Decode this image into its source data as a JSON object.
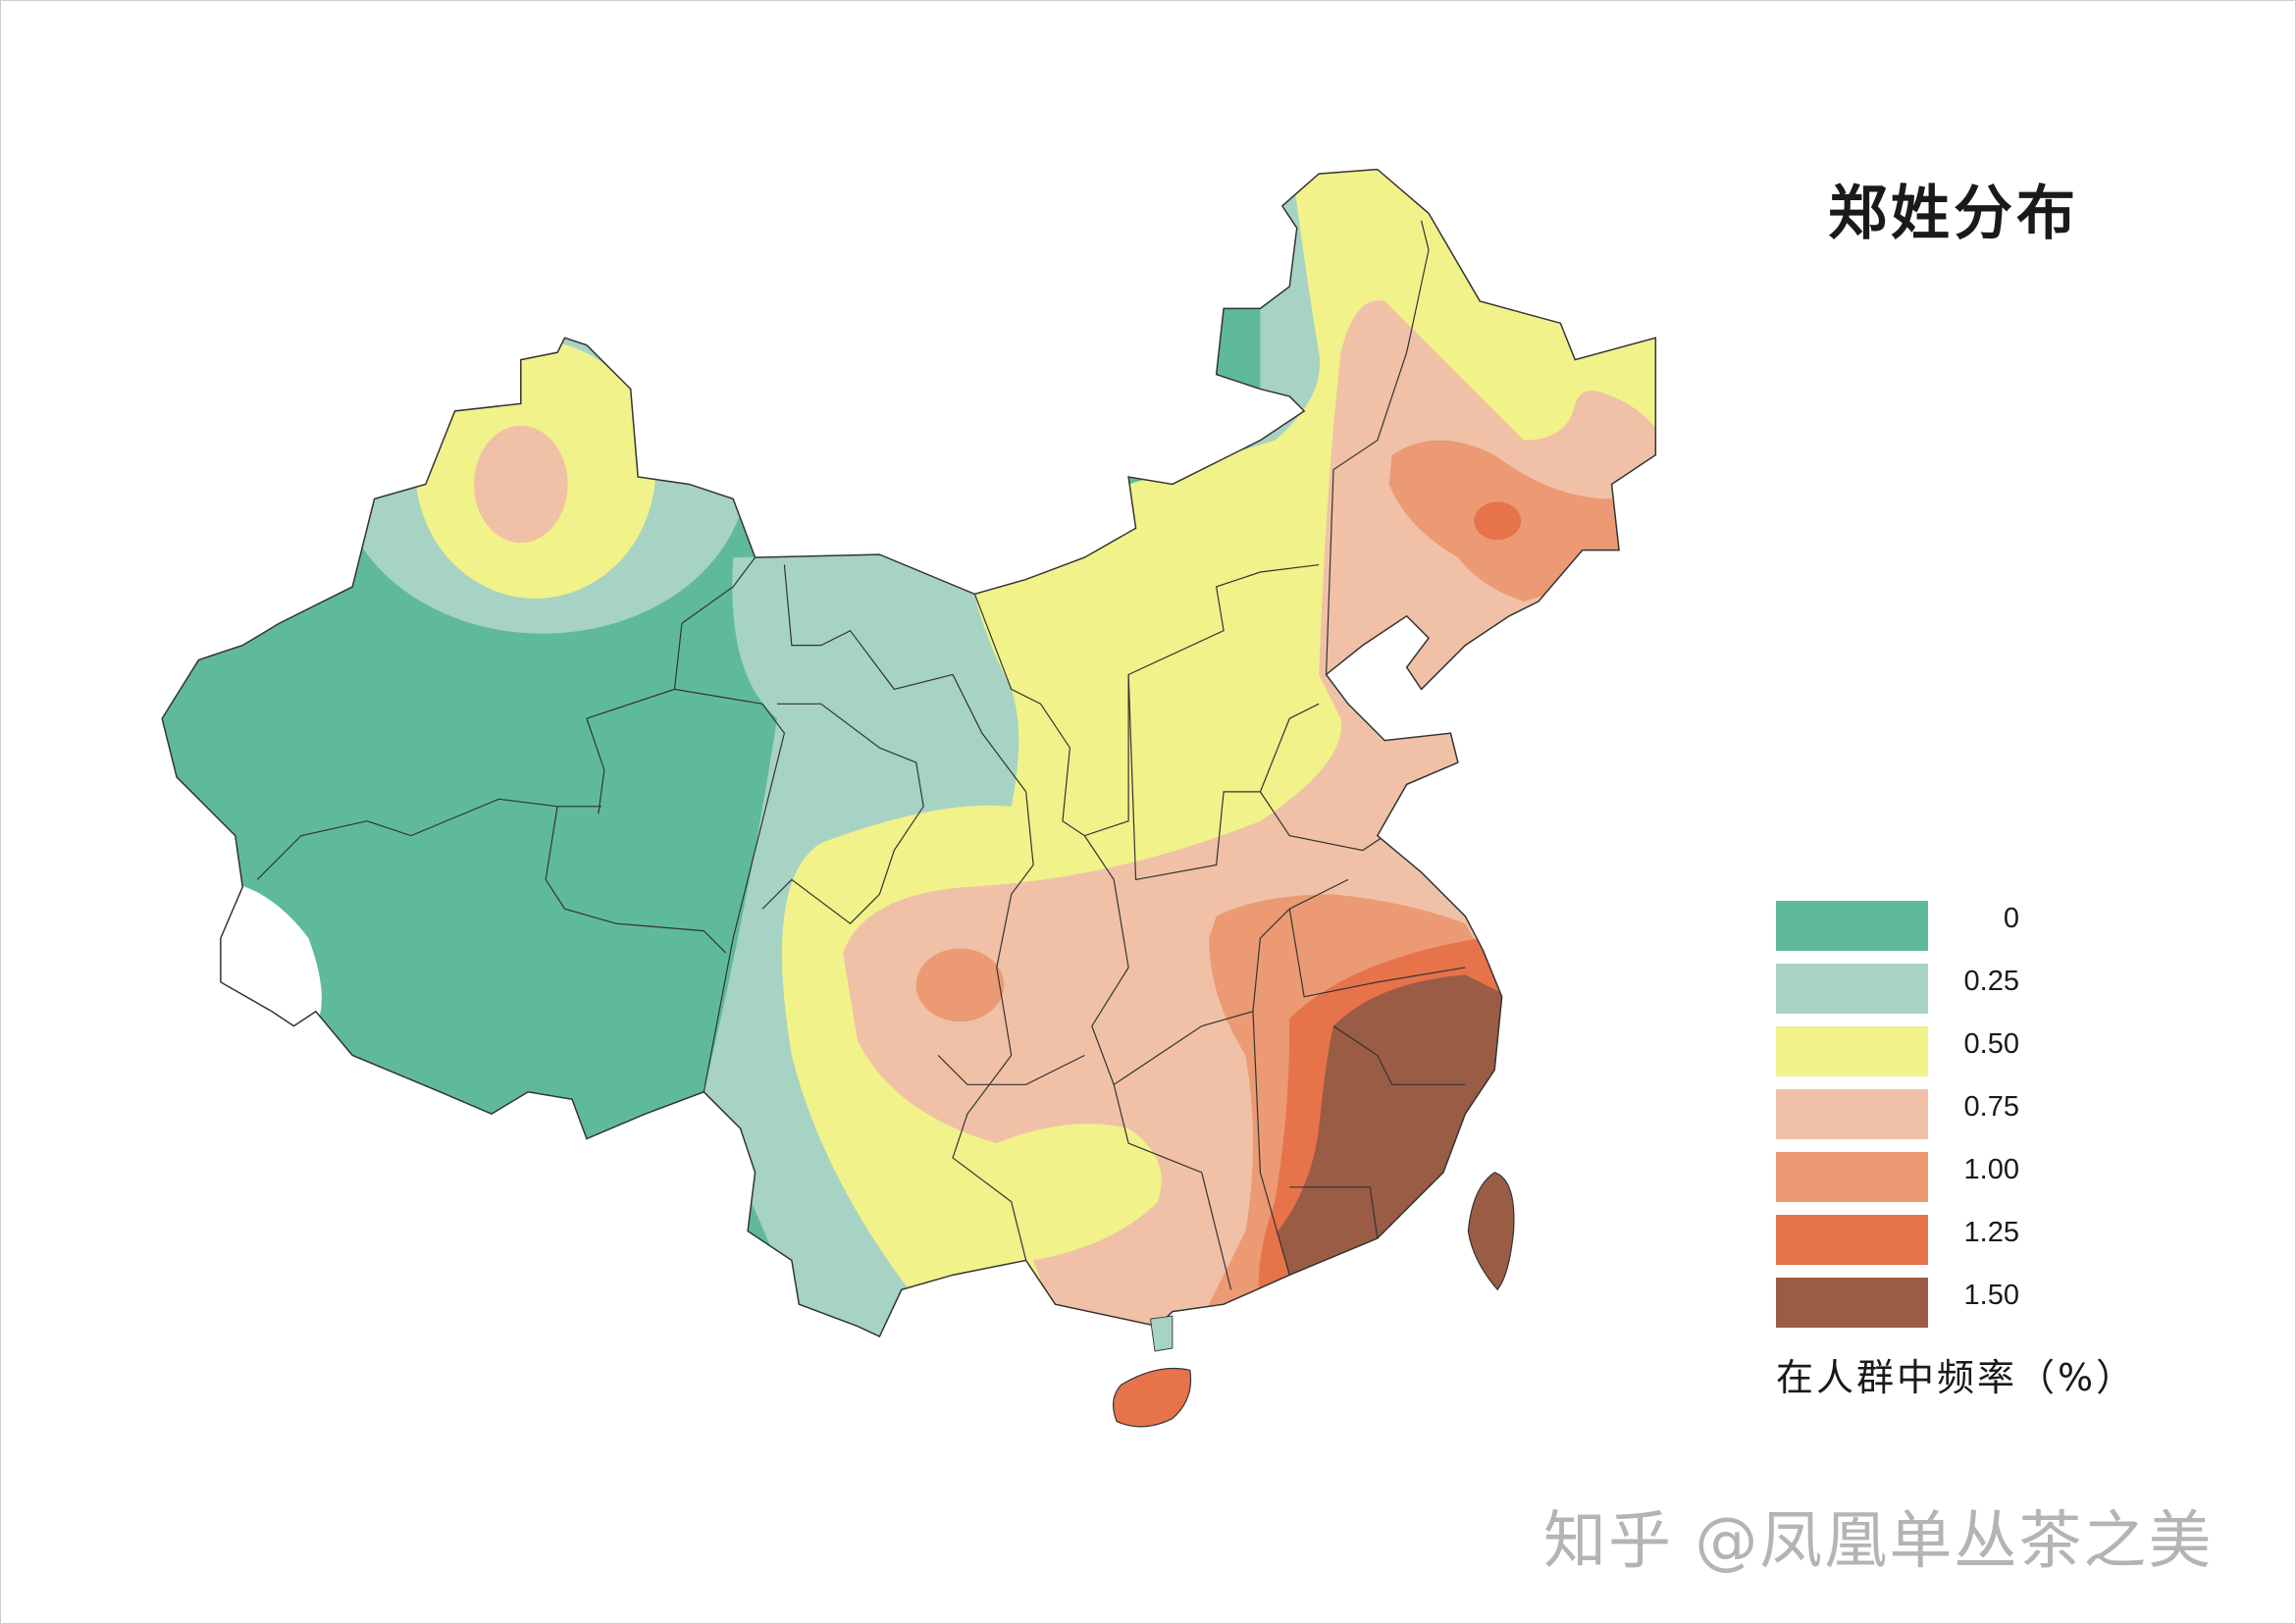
{
  "title": "郑姓分布",
  "legend": {
    "items": [
      {
        "label": "0",
        "color": "#5fba9a"
      },
      {
        "label": "0.25",
        "color": "#a6d3c3"
      },
      {
        "label": "0.50",
        "color": "#f1f28a"
      },
      {
        "label": "0.75",
        "color": "#f0c1a6"
      },
      {
        "label": "1.00",
        "color": "#eb9a74"
      },
      {
        "label": "1.25",
        "color": "#e7734b"
      },
      {
        "label": "1.50",
        "color": "#9a5c45"
      }
    ],
    "caption": "在人群中频率（%）"
  },
  "watermark": "知乎 @凤凰单丛茶之美",
  "chart_data": {
    "type": "heatmap",
    "title": "郑姓分布",
    "legend_title": "在人群中频率（%）",
    "scale_values": [
      0,
      0.25,
      0.5,
      0.75,
      1.0,
      1.25,
      1.5
    ],
    "unit": "%",
    "legend_placement": "bottom-right",
    "highest_regions": "southeast coast (Fujian, Taiwan)"
  }
}
